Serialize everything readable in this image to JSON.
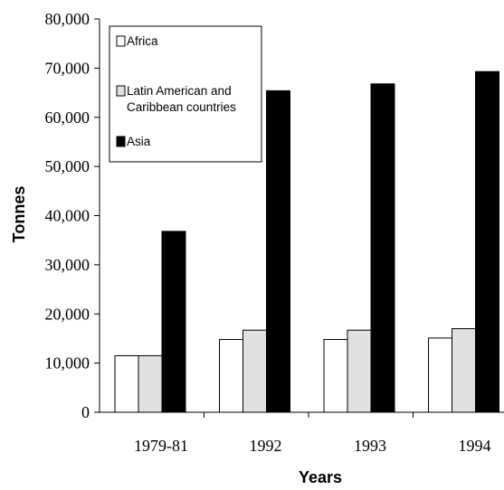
{
  "chart_data": {
    "type": "bar",
    "title": "",
    "xlabel": "Years",
    "ylabel": "Tonnes",
    "categories": [
      "1979-81",
      "1992",
      "1993",
      "1994"
    ],
    "ylim": [
      0,
      80000
    ],
    "yticks": [
      "0",
      "10,000",
      "20,000",
      "30,000",
      "40,000",
      "50,000",
      "60,000",
      "70,000",
      "80,000"
    ],
    "grid": false,
    "legend_position": "top-left",
    "series": [
      {
        "name": "Africa",
        "values": [
          11500,
          14800,
          14800,
          15100
        ],
        "color": "#ffffff"
      },
      {
        "name": "Latin American and Caribbean countries",
        "values": [
          11500,
          16700,
          16700,
          17000
        ],
        "color": "#e0e0e0"
      },
      {
        "name": "Asia",
        "values": [
          36800,
          65400,
          66800,
          69300
        ],
        "color": "#000000"
      }
    ],
    "legend": [
      {
        "lines": [
          "Africa"
        ]
      },
      {
        "lines": [
          "Latin American and",
          "Caribbean countries"
        ]
      },
      {
        "lines": [
          "Asia"
        ]
      }
    ]
  }
}
